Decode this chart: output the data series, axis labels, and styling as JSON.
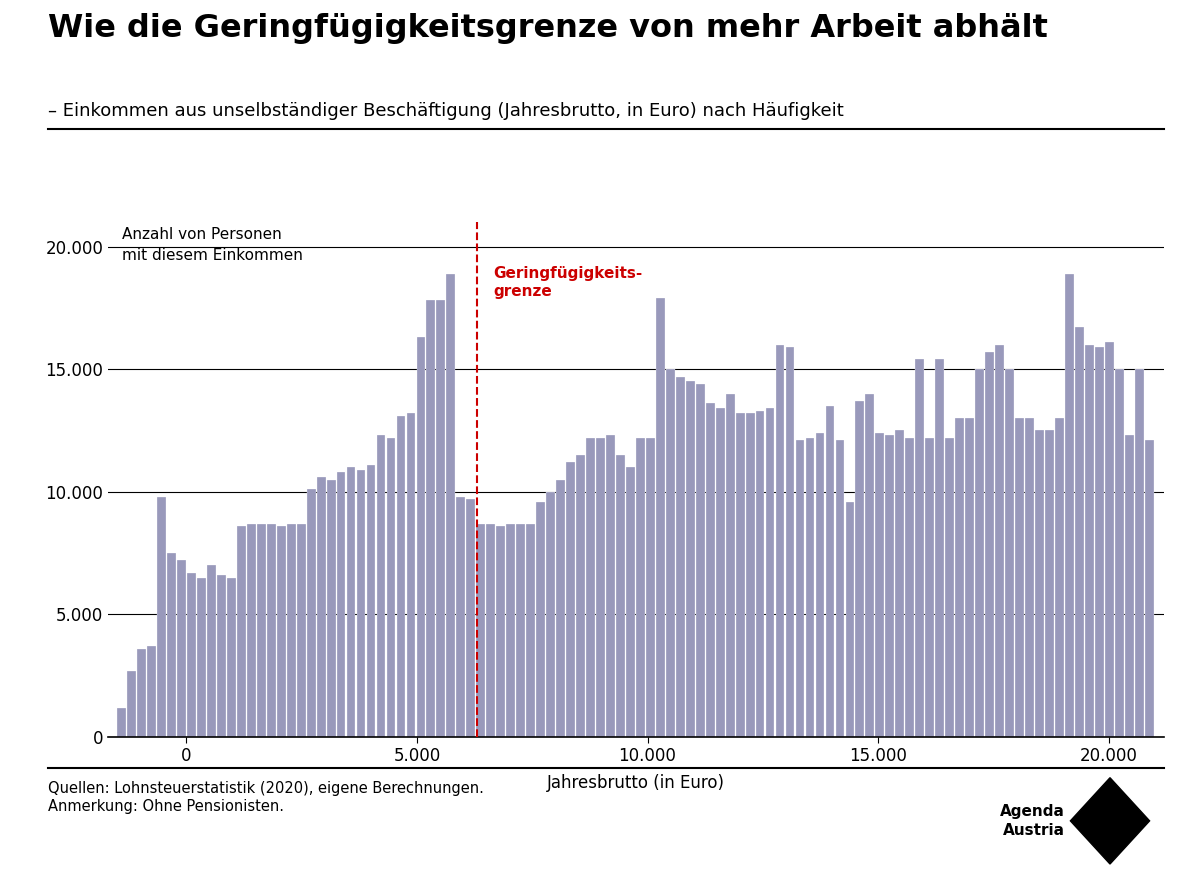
{
  "title": "Wie die Geringfügigkeitsgrenze von mehr Arbeit abhält",
  "subtitle": "– Einkommen aus unselbständiger Beschäftigung (Jahresbrutto, in Euro) nach Häufigkeit",
  "ylabel_text": "Anzahl von Personen\nmit diesem Einkommen",
  "xlabel_text": "Jahresbrutto (in Euro)",
  "annotation_text": "Geringfügigkeits-\ngrenze",
  "source_text": "Quellen: Lohnsteuerstatistik (2020), eigene Berechnungen.\nAnmerkung: Ohne Pensionisten.",
  "bar_color": "#9999bb",
  "annotation_line_color": "#cc0000",
  "title_color": "#000000",
  "subtitle_color": "#000000",
  "annotation_text_color": "#cc0000",
  "geringfuegigkeitsgrenze_x": 6300,
  "ylim": [
    0,
    21000
  ],
  "yticks": [
    0,
    5000,
    10000,
    15000,
    20000
  ],
  "xticks": [
    0,
    5000,
    10000,
    15000,
    20000
  ],
  "x_min": -1500,
  "x_max": 21000,
  "bar_values": [
    1200,
    2700,
    3600,
    3700,
    9800,
    7500,
    7200,
    6700,
    6500,
    7000,
    6600,
    6500,
    8600,
    8700,
    8700,
    8700,
    8600,
    8700,
    8700,
    10100,
    10600,
    10500,
    10800,
    11000,
    10900,
    11100,
    12300,
    12200,
    13100,
    13200,
    16300,
    17800,
    17800,
    18900,
    9800,
    9700,
    8700,
    8700,
    8600,
    8700,
    8700,
    8700,
    9600,
    10000,
    10500,
    11200,
    11500,
    12200,
    12200,
    12300,
    11500,
    11000,
    12200,
    12200,
    17900,
    15000,
    14700,
    14500,
    14400,
    13600,
    13400,
    14000,
    13200,
    13200,
    13300,
    13400,
    16000,
    15900,
    12100,
    12200,
    12400,
    13500,
    12100,
    9600,
    13700,
    14000,
    12400,
    12300,
    12500,
    12200,
    15400,
    12200,
    15400,
    12200,
    13000,
    13000,
    15000,
    15700,
    16000,
    15000,
    13000,
    13000,
    12500,
    12500,
    13000,
    18900,
    16700,
    16000,
    15900,
    16100,
    15000,
    12300,
    15000,
    12100
  ],
  "background_color": "#ffffff"
}
